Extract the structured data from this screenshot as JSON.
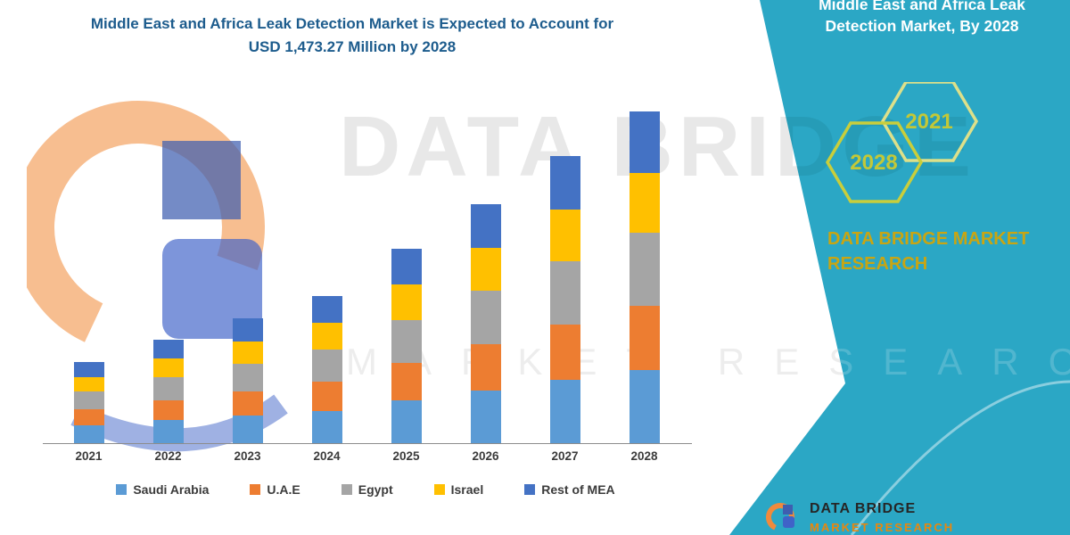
{
  "header": {
    "title_line1": "Middle East and Africa Leak Detection Market is Expected to Account for",
    "title_line2": "USD 1,473.27 Million by 2028"
  },
  "chart_data": {
    "type": "bar",
    "subtype": "stacked",
    "title": "Middle East and Africa Leak Detection Market is Expected to Account for USD 1,473.27 Million by 2028",
    "unit": "USD Million",
    "categories": [
      "2021",
      "2022",
      "2023",
      "2024",
      "2025",
      "2026",
      "2027",
      "2028"
    ],
    "series": [
      {
        "name": "Saudi Arabia",
        "color": "#5B9BD5",
        "values": [
          80,
          101,
          122,
          144,
          190,
          234,
          280,
          324
        ]
      },
      {
        "name": "U.A.E",
        "color": "#ED7D31",
        "values": [
          70,
          90,
          108,
          128,
          168,
          207,
          248,
          287
        ]
      },
      {
        "name": "Egypt",
        "color": "#A5A5A5",
        "values": [
          80,
          101,
          122,
          144,
          190,
          234,
          280,
          324
        ]
      },
      {
        "name": "Israel",
        "color": "#FFC000",
        "values": [
          65,
          83,
          100,
          118,
          155,
          191,
          229,
          265
        ]
      },
      {
        "name": "Rest of MEA",
        "color": "#4472C4",
        "values": [
          67,
          85,
          101,
          121,
          160,
          196,
          237,
          273.27
        ]
      }
    ],
    "totals": [
      362,
      460,
      553,
      655,
      863,
      1062,
      1274,
      1473.27
    ],
    "ylim": [
      0,
      1500
    ],
    "grid": false,
    "legend_position": "bottom",
    "xlabel": "",
    "ylabel": ""
  },
  "watermark": {
    "line1": "DATA BRIDGE",
    "line2": "MARKET RESEARCH"
  },
  "side_panel": {
    "panel_color": "#2BA7C5",
    "accent_gold": "#C9A512",
    "hex_outline_color": "#C9CE3B",
    "title_line1": "Middle East and Africa Leak",
    "title_line2": "Detection Market, By 2028",
    "hex_left_year": "2028",
    "hex_right_year": "2021",
    "brand_line1": "DATA BRIDGE MARKET",
    "brand_line2": "RESEARCH"
  },
  "footer_logo": {
    "line1": "DATA BRIDGE",
    "line2": "MARKET RESEARCH"
  }
}
